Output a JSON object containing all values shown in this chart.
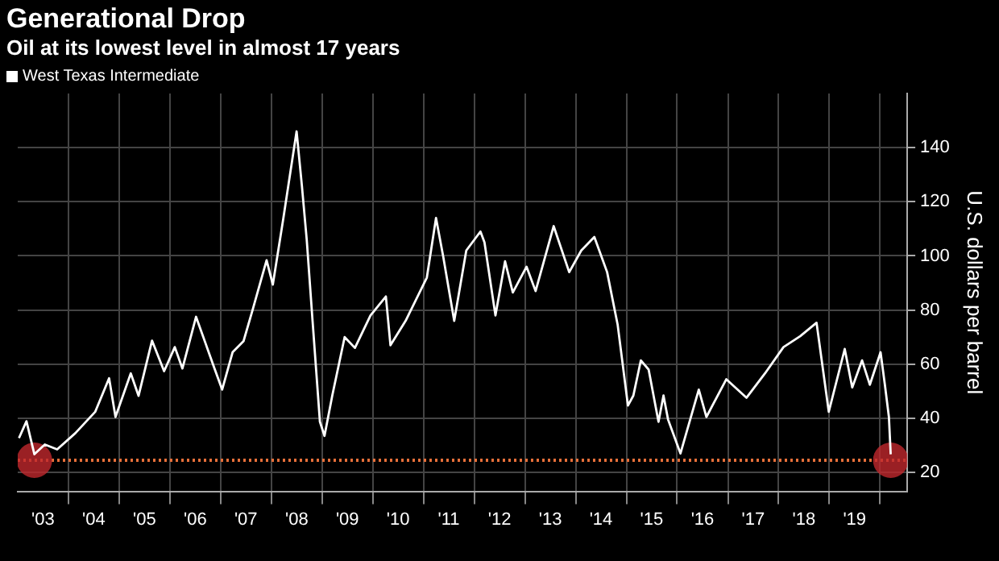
{
  "chart_data": {
    "type": "line",
    "title": "Generational Drop",
    "subtitle": "Oil at its lowest level in almost 17 years",
    "ylabel": "U.S. dollars per barrel",
    "legend": "top left",
    "grid": true,
    "marker": "none",
    "line_style": "solid",
    "x": [
      "2003-01-10",
      "2003-03-05",
      "2003-05-01",
      "2003-07-15",
      "2003-10-12",
      "2004-02-20",
      "2004-07-12",
      "2004-10-20",
      "2004-12-05",
      "2005-03-25",
      "2005-05-20",
      "2005-08-25",
      "2005-11-20",
      "2006-02-05",
      "2006-04-01",
      "2006-07-08",
      "2006-11-18",
      "2007-01-12",
      "2007-03-28",
      "2007-06-15",
      "2007-08-22",
      "2007-11-28",
      "2008-01-12",
      "2008-03-28",
      "2008-07-01",
      "2008-08-08",
      "2008-09-12",
      "2008-10-24",
      "2008-12-16",
      "2009-01-18",
      "2009-03-15",
      "2009-06-12",
      "2009-08-25",
      "2009-12-15",
      "2010-04-05",
      "2010-05-08",
      "2010-08-25",
      "2011-01-25",
      "2011-04-01",
      "2011-05-22",
      "2011-08-10",
      "2011-11-05",
      "2012-02-15",
      "2012-03-15",
      "2012-06-02",
      "2012-08-10",
      "2012-10-05",
      "2013-01-12",
      "2013-03-18",
      "2013-07-26",
      "2013-11-15",
      "2014-02-10",
      "2014-05-15",
      "2014-08-15",
      "2014-10-30",
      "2015-01-12",
      "2015-02-20",
      "2015-04-15",
      "2015-06-10",
      "2015-08-20",
      "2015-09-25",
      "2015-10-28",
      "2016-01-25",
      "2016-06-05",
      "2016-07-30",
      "2016-12-20",
      "2017-05-15",
      "2017-09-25",
      "2018-02-05",
      "2018-06-05",
      "2018-10-01",
      "2018-12-28",
      "2019-04-22",
      "2019-06-15",
      "2019-08-25",
      "2019-10-20",
      "2020-01-05",
      "2020-02-05",
      "2020-03-05",
      "2020-03-18"
    ],
    "xlim": [
      "2003-01-01",
      "2020-07-15"
    ],
    "xticks": [
      {
        "value": "2003-07-02",
        "label": "'03"
      },
      {
        "value": "2004-01-01",
        "label": null
      },
      {
        "value": "2004-07-02",
        "label": "'04"
      },
      {
        "value": "2005-01-01",
        "label": null
      },
      {
        "value": "2005-07-02",
        "label": "'05"
      },
      {
        "value": "2006-01-01",
        "label": null
      },
      {
        "value": "2006-07-02",
        "label": "'06"
      },
      {
        "value": "2007-01-01",
        "label": null
      },
      {
        "value": "2007-07-02",
        "label": "'07"
      },
      {
        "value": "2008-01-01",
        "label": null
      },
      {
        "value": "2008-07-02",
        "label": "'08"
      },
      {
        "value": "2009-01-01",
        "label": null
      },
      {
        "value": "2009-07-02",
        "label": "'09"
      },
      {
        "value": "2010-01-01",
        "label": null
      },
      {
        "value": "2010-07-02",
        "label": "'10"
      },
      {
        "value": "2011-01-01",
        "label": null
      },
      {
        "value": "2011-07-02",
        "label": "'11"
      },
      {
        "value": "2012-01-01",
        "label": null
      },
      {
        "value": "2012-07-02",
        "label": "'12"
      },
      {
        "value": "2013-01-01",
        "label": null
      },
      {
        "value": "2013-07-02",
        "label": "'13"
      },
      {
        "value": "2014-01-01",
        "label": null
      },
      {
        "value": "2014-07-02",
        "label": "'14"
      },
      {
        "value": "2015-01-01",
        "label": null
      },
      {
        "value": "2015-07-02",
        "label": "'15"
      },
      {
        "value": "2016-01-01",
        "label": null
      },
      {
        "value": "2016-07-02",
        "label": "'16"
      },
      {
        "value": "2017-01-01",
        "label": null
      },
      {
        "value": "2017-07-02",
        "label": "'17"
      },
      {
        "value": "2018-01-01",
        "label": null
      },
      {
        "value": "2018-07-02",
        "label": "'18"
      },
      {
        "value": "2019-01-01",
        "label": null
      },
      {
        "value": "2019-07-02",
        "label": "'19"
      },
      {
        "value": "2020-01-01",
        "label": null
      }
    ],
    "ylim": [
      13,
      160
    ],
    "yticks": [
      20,
      40,
      60,
      80,
      100,
      120,
      140
    ],
    "ref_lines": [
      {
        "axis": "y",
        "value": 24.5,
        "color": "#e8703a",
        "line_style": "dotted"
      }
    ],
    "series": [
      {
        "name": "West Texas Intermediate",
        "color": "#ffffff",
        "values": [
          32.7,
          38.9,
          26.7,
          30.3,
          28.5,
          34.5,
          42.4,
          54.8,
          40.5,
          56.6,
          48.3,
          68.7,
          57.4,
          66.3,
          58.4,
          77.5,
          58.4,
          50.6,
          64.4,
          68.5,
          80.5,
          98.4,
          89.4,
          114,
          146,
          126,
          106,
          76,
          38.7,
          33.5,
          48.4,
          70,
          66,
          78,
          85,
          67,
          76,
          92,
          114,
          100,
          76,
          102,
          109,
          105,
          78,
          98,
          86.5,
          96,
          87,
          111,
          94,
          102,
          107,
          94,
          74.5,
          44.7,
          48.4,
          61.4,
          58,
          38.7,
          48.4,
          39.5,
          27,
          50.6,
          40.5,
          54.4,
          47.6,
          56.6,
          66.3,
          70.3,
          75.3,
          42.4,
          65.6,
          51.4,
          61.4,
          52.4,
          64.4,
          52.4,
          40.5,
          26.7
        ]
      },
      {
        "type": "scatter",
        "color": "#c0282d",
        "marker": "circle",
        "x": [
          "2003-05-01",
          "2020-03-18"
        ],
        "values": [
          24.5,
          24.5
        ]
      }
    ]
  }
}
